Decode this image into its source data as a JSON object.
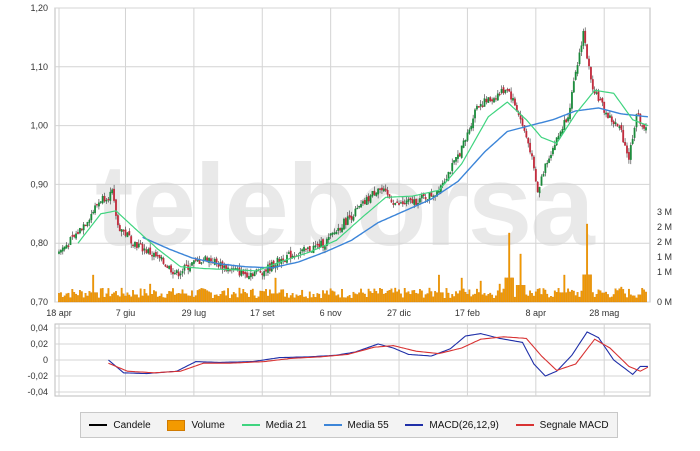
{
  "watermark": "teleborsa",
  "colors": {
    "up": "#1a8a3a",
    "down": "#c0283a",
    "volume": "#f39a00",
    "media21": "#3fd47f",
    "media55": "#3c85d8",
    "macd": "#1f2fa8",
    "signal": "#d83232",
    "grid": "#d4d4d4"
  },
  "legend": [
    {
      "label": "Candele",
      "color": "#000000",
      "kind": "line"
    },
    {
      "label": "Volume",
      "color": "#f39a00",
      "kind": "box"
    },
    {
      "label": "Media 21",
      "color": "#3fd47f",
      "kind": "line"
    },
    {
      "label": "Media 55",
      "color": "#3c85d8",
      "kind": "line"
    },
    {
      "label": "MACD(26,12,9)",
      "color": "#1f2fa8",
      "kind": "line"
    },
    {
      "label": "Segnale MACD",
      "color": "#d83232",
      "kind": "line"
    }
  ],
  "chart_data": [
    {
      "type": "candlestick",
      "ylim": [
        0.7,
        1.2
      ],
      "y_ticks": [
        "1,20",
        "1,10",
        "1,00",
        "0,90",
        "0,80",
        "0,70"
      ],
      "y_tick_values": [
        1.2,
        1.1,
        1.0,
        0.9,
        0.8,
        0.7
      ],
      "x_ticks": [
        "18 apr",
        "7 giu",
        "29 lug",
        "17 set",
        "6 nov",
        "27 dic",
        "17 feb",
        "8 apr",
        "28 mag"
      ],
      "x_tick_index": [
        0,
        35,
        71,
        107,
        143,
        179,
        215,
        251,
        287
      ],
      "n_sessions": 310,
      "close_anchors": [
        [
          0,
          0.785
        ],
        [
          8,
          0.81
        ],
        [
          16,
          0.845
        ],
        [
          22,
          0.875
        ],
        [
          28,
          0.885
        ],
        [
          31,
          0.83
        ],
        [
          40,
          0.8
        ],
        [
          52,
          0.775
        ],
        [
          62,
          0.748
        ],
        [
          70,
          0.765
        ],
        [
          78,
          0.775
        ],
        [
          88,
          0.758
        ],
        [
          98,
          0.748
        ],
        [
          108,
          0.753
        ],
        [
          118,
          0.775
        ],
        [
          128,
          0.785
        ],
        [
          140,
          0.8
        ],
        [
          150,
          0.835
        ],
        [
          160,
          0.865
        ],
        [
          168,
          0.895
        ],
        [
          178,
          0.865
        ],
        [
          188,
          0.872
        ],
        [
          198,
          0.885
        ],
        [
          208,
          0.935
        ],
        [
          214,
          0.975
        ],
        [
          220,
          1.035
        ],
        [
          228,
          1.045
        ],
        [
          236,
          1.065
        ],
        [
          242,
          1.02
        ],
        [
          248,
          0.96
        ],
        [
          252,
          0.885
        ],
        [
          256,
          0.935
        ],
        [
          262,
          0.975
        ],
        [
          268,
          1.02
        ],
        [
          272,
          1.085
        ],
        [
          276,
          1.16
        ],
        [
          280,
          1.075
        ],
        [
          288,
          1.02
        ],
        [
          296,
          0.99
        ],
        [
          300,
          0.945
        ],
        [
          304,
          1.02
        ],
        [
          310,
          0.985
        ]
      ],
      "media21_anchors": [
        [
          10,
          0.8
        ],
        [
          22,
          0.85
        ],
        [
          30,
          0.855
        ],
        [
          40,
          0.825
        ],
        [
          52,
          0.79
        ],
        [
          64,
          0.76
        ],
        [
          76,
          0.757
        ],
        [
          90,
          0.755
        ],
        [
          104,
          0.753
        ],
        [
          118,
          0.77
        ],
        [
          132,
          0.785
        ],
        [
          146,
          0.805
        ],
        [
          160,
          0.845
        ],
        [
          172,
          0.878
        ],
        [
          186,
          0.88
        ],
        [
          200,
          0.89
        ],
        [
          212,
          0.935
        ],
        [
          226,
          1.015
        ],
        [
          236,
          1.04
        ],
        [
          246,
          1.01
        ],
        [
          254,
          0.98
        ],
        [
          262,
          0.97
        ],
        [
          272,
          1.02
        ],
        [
          282,
          1.06
        ],
        [
          292,
          1.055
        ],
        [
          302,
          1.01
        ],
        [
          310,
          1.0
        ]
      ],
      "media55_anchors": [
        [
          44,
          0.81
        ],
        [
          58,
          0.79
        ],
        [
          70,
          0.775
        ],
        [
          84,
          0.765
        ],
        [
          98,
          0.76
        ],
        [
          112,
          0.758
        ],
        [
          126,
          0.768
        ],
        [
          140,
          0.785
        ],
        [
          154,
          0.805
        ],
        [
          168,
          0.835
        ],
        [
          182,
          0.855
        ],
        [
          196,
          0.875
        ],
        [
          210,
          0.905
        ],
        [
          224,
          0.955
        ],
        [
          236,
          0.99
        ],
        [
          248,
          1.0
        ],
        [
          260,
          1.01
        ],
        [
          272,
          1.025
        ],
        [
          284,
          1.03
        ],
        [
          296,
          1.02
        ],
        [
          310,
          1.015
        ]
      ],
      "volume_axis": [
        "3 M",
        "2 M",
        "2 M",
        "1 M",
        "1 M",
        "0 M"
      ],
      "volume_axis_values": [
        3.0,
        2.5,
        2.0,
        1.5,
        1.0,
        0.0
      ],
      "volume_spikes": [
        [
          18,
          0.9
        ],
        [
          48,
          0.6
        ],
        [
          114,
          0.8
        ],
        [
          200,
          0.9
        ],
        [
          212,
          0.8
        ],
        [
          222,
          0.7
        ],
        [
          232,
          0.6
        ],
        [
          237,
          2.3
        ],
        [
          243,
          1.6
        ],
        [
          266,
          0.9
        ],
        [
          278,
          2.6
        ],
        [
          296,
          0.5
        ]
      ]
    },
    {
      "type": "line",
      "ylim": [
        -0.04,
        0.04
      ],
      "y_ticks": [
        "0,04",
        "0,02",
        "0",
        "-0,02",
        "-0,04"
      ],
      "y_tick_values": [
        0.04,
        0.02,
        0.0,
        -0.02,
        -0.04
      ],
      "series": [
        {
          "name": "MACD(26,12,9)",
          "anchors": [
            [
              26,
              0.0
            ],
            [
              34,
              -0.016
            ],
            [
              46,
              -0.017
            ],
            [
              62,
              -0.014
            ],
            [
              72,
              -0.002
            ],
            [
              84,
              -0.003
            ],
            [
              102,
              -0.002
            ],
            [
              116,
              0.003
            ],
            [
              132,
              0.004
            ],
            [
              146,
              0.006
            ],
            [
              156,
              0.01
            ],
            [
              168,
              0.02
            ],
            [
              176,
              0.015
            ],
            [
              184,
              0.007
            ],
            [
              196,
              0.005
            ],
            [
              206,
              0.014
            ],
            [
              214,
              0.03
            ],
            [
              222,
              0.033
            ],
            [
              232,
              0.027
            ],
            [
              244,
              0.022
            ],
            [
              250,
              -0.005
            ],
            [
              256,
              -0.02
            ],
            [
              262,
              -0.014
            ],
            [
              270,
              0.006
            ],
            [
              278,
              0.035
            ],
            [
              284,
              0.028
            ],
            [
              292,
              0.0
            ],
            [
              302,
              -0.018
            ],
            [
              306,
              -0.008
            ],
            [
              310,
              -0.008
            ]
          ]
        },
        {
          "name": "Segnale MACD",
          "anchors": [
            [
              26,
              -0.004
            ],
            [
              36,
              -0.014
            ],
            [
              50,
              -0.016
            ],
            [
              64,
              -0.014
            ],
            [
              76,
              -0.004
            ],
            [
              90,
              -0.004
            ],
            [
              108,
              -0.002
            ],
            [
              122,
              0.002
            ],
            [
              138,
              0.004
            ],
            [
              152,
              0.007
            ],
            [
              166,
              0.016
            ],
            [
              176,
              0.018
            ],
            [
              188,
              0.011
            ],
            [
              200,
              0.008
            ],
            [
              212,
              0.015
            ],
            [
              222,
              0.026
            ],
            [
              234,
              0.029
            ],
            [
              246,
              0.027
            ],
            [
              254,
              0.005
            ],
            [
              262,
              -0.013
            ],
            [
              272,
              -0.005
            ],
            [
              282,
              0.026
            ],
            [
              290,
              0.015
            ],
            [
              300,
              -0.008
            ],
            [
              306,
              -0.014
            ],
            [
              310,
              -0.009
            ]
          ]
        }
      ]
    }
  ]
}
